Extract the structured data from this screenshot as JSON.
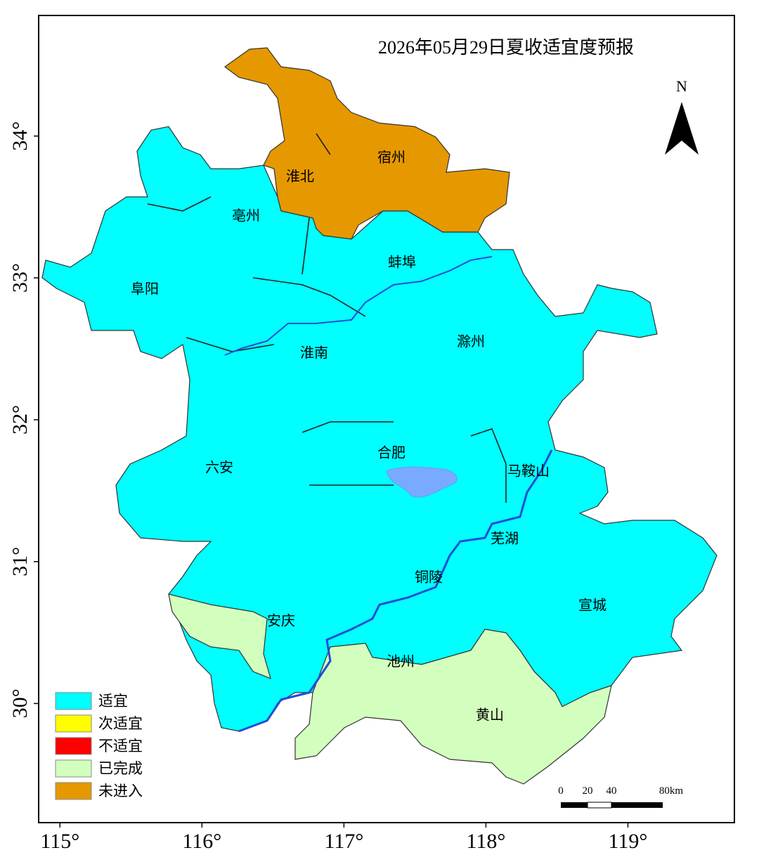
{
  "map": {
    "title": "2026年05月29日夏收适宜度预报",
    "xlim": [
      114.85,
      119.75
    ],
    "ylim": [
      29.16,
      34.85
    ],
    "xticks": [
      {
        "value": 115,
        "label": "115°"
      },
      {
        "value": 116,
        "label": "116°"
      },
      {
        "value": 117,
        "label": "117°"
      },
      {
        "value": 118,
        "label": "118°"
      },
      {
        "value": 119,
        "label": "119°"
      }
    ],
    "yticks": [
      {
        "value": 30,
        "label": "30°"
      },
      {
        "value": 31,
        "label": "31°"
      },
      {
        "value": 32,
        "label": "32°"
      },
      {
        "value": 33,
        "label": "33°"
      },
      {
        "value": 34,
        "label": "34°"
      }
    ],
    "city_labels": [
      "淮北",
      "宿州",
      "亳州",
      "蚌埠",
      "阜阳",
      "淮南",
      "滁州",
      "合肥",
      "六安",
      "马鞍山",
      "芜湖",
      "铜陵",
      "宣城",
      "安庆",
      "池州",
      "黄山"
    ],
    "legend": [
      {
        "name": "适宜",
        "color": "#00ffff"
      },
      {
        "name": "次适宜",
        "color": "#ffff00"
      },
      {
        "name": "不适宜",
        "color": "#ff0000"
      },
      {
        "name": "已完成",
        "color": "#d3ffbe"
      },
      {
        "name": "未进入",
        "color": "#e69800"
      }
    ],
    "north_label": "N",
    "scale_labels": [
      "0",
      "20",
      "40",
      "80km"
    ]
  }
}
